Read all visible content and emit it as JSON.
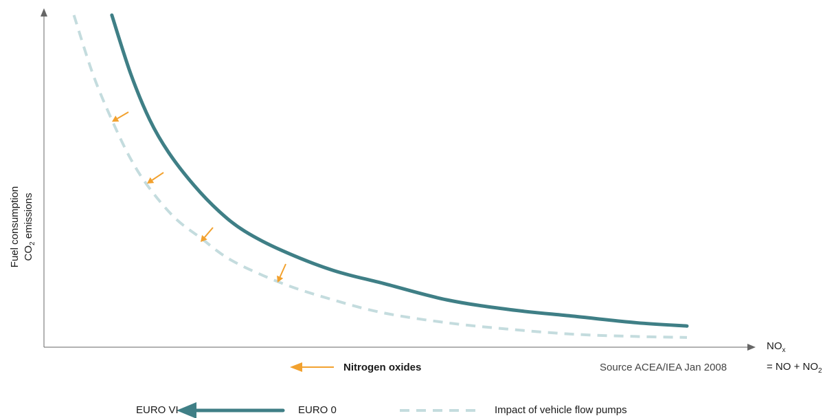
{
  "chart_data": {
    "type": "line",
    "title": "",
    "source": "Source ACEA/IEA Jan 2008",
    "y_axis_label": {
      "line1": "Fuel consumption",
      "line2_main": "CO",
      "line2_sub": "2",
      "line2_rest": " emissions"
    },
    "x_axis_label": {
      "line1_main": "NO",
      "line1_sub": "x",
      "line2_main": "= NO + NO",
      "line2_sub": "2"
    },
    "annotation": "Nitrogen oxides",
    "grid": false,
    "xlim": [
      0,
      100
    ],
    "ylim": [
      0,
      100
    ],
    "series": [
      {
        "name": "EURO 0",
        "style": "solid",
        "color": "#3f7f86",
        "x": [
          9,
          12,
          15,
          18,
          22,
          26,
          30,
          36,
          44,
          52,
          62,
          72,
          82,
          92,
          100
        ],
        "y": [
          100,
          82,
          68,
          58,
          48,
          40,
          34,
          28,
          22,
          18,
          13,
          10,
          8,
          6,
          5
        ]
      },
      {
        "name": "Impact of vehicle flow pumps",
        "style": "dashed",
        "color": "#c4dcde",
        "x": [
          3,
          6,
          9,
          12,
          15,
          19,
          23,
          28,
          36,
          44,
          52,
          62,
          72,
          82,
          92,
          100
        ],
        "y": [
          100,
          82,
          68,
          56,
          47,
          38,
          32,
          25,
          18,
          13,
          9,
          6,
          4,
          2.5,
          1.8,
          1.5
        ]
      }
    ],
    "arrows_color": "#f2a12e",
    "legend": {
      "euro_vi": "EURO VI",
      "euro_0": "EURO 0",
      "dashed": "Impact of vehicle flow pumps"
    }
  }
}
